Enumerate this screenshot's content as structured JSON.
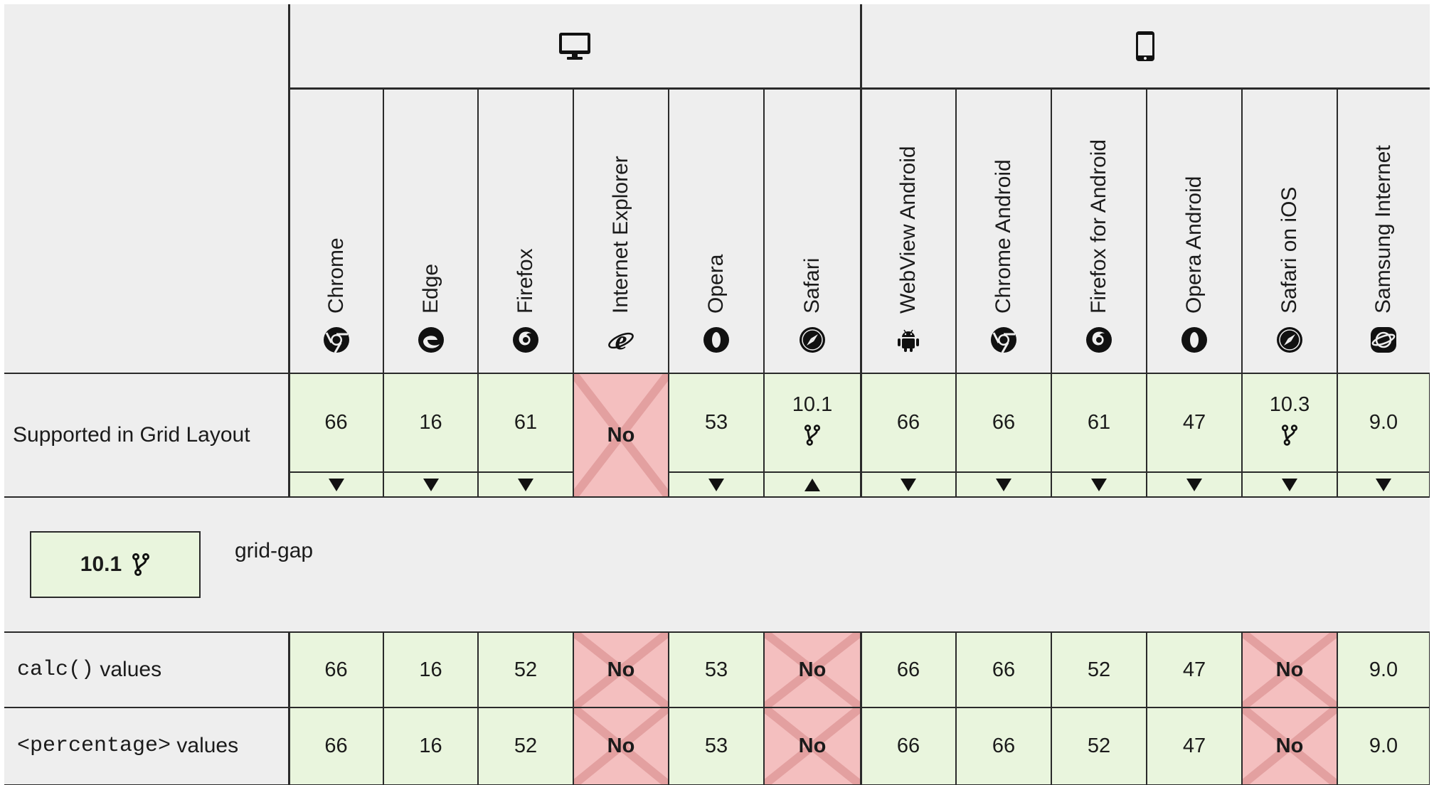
{
  "groups": {
    "desktop_icon": "desktop-icon",
    "mobile_icon": "mobile-icon"
  },
  "browsers": [
    {
      "name": "Chrome",
      "icon": "chrome-icon"
    },
    {
      "name": "Edge",
      "icon": "edge-icon"
    },
    {
      "name": "Firefox",
      "icon": "firefox-icon"
    },
    {
      "name": "Internet Explorer",
      "icon": "ie-icon"
    },
    {
      "name": "Opera",
      "icon": "opera-icon"
    },
    {
      "name": "Safari",
      "icon": "safari-icon"
    },
    {
      "name": "WebView Android",
      "icon": "android-icon"
    },
    {
      "name": "Chrome Android",
      "icon": "chrome-icon"
    },
    {
      "name": "Firefox for Android",
      "icon": "firefox-icon"
    },
    {
      "name": "Opera Android",
      "icon": "opera-icon"
    },
    {
      "name": "Safari on iOS",
      "icon": "safari-icon"
    },
    {
      "name": "Samsung Internet",
      "icon": "samsung-icon"
    }
  ],
  "rows": [
    {
      "label": "Supported in Grid Layout",
      "label_code": "",
      "label_suffix": "",
      "cells": [
        {
          "value": "66",
          "support": "yes",
          "note": false,
          "toggle": "down"
        },
        {
          "value": "16",
          "support": "yes",
          "note": false,
          "toggle": "down"
        },
        {
          "value": "61",
          "support": "yes",
          "note": false,
          "toggle": "down"
        },
        {
          "value": "No",
          "support": "no",
          "note": false,
          "toggle": "none"
        },
        {
          "value": "53",
          "support": "yes",
          "note": false,
          "toggle": "down"
        },
        {
          "value": "10.1",
          "support": "yes",
          "note": true,
          "toggle": "up"
        },
        {
          "value": "66",
          "support": "yes",
          "note": false,
          "toggle": "down"
        },
        {
          "value": "66",
          "support": "yes",
          "note": false,
          "toggle": "down"
        },
        {
          "value": "61",
          "support": "yes",
          "note": false,
          "toggle": "down"
        },
        {
          "value": "47",
          "support": "yes",
          "note": false,
          "toggle": "down"
        },
        {
          "value": "10.3",
          "support": "yes",
          "note": true,
          "toggle": "down"
        },
        {
          "value": "9.0",
          "support": "yes",
          "note": false,
          "toggle": "down"
        }
      ]
    },
    {
      "label": "",
      "label_code": "calc()",
      "label_suffix": " values",
      "cells": [
        {
          "value": "66",
          "support": "yes"
        },
        {
          "value": "16",
          "support": "yes"
        },
        {
          "value": "52",
          "support": "yes"
        },
        {
          "value": "No",
          "support": "no"
        },
        {
          "value": "53",
          "support": "yes"
        },
        {
          "value": "No",
          "support": "no"
        },
        {
          "value": "66",
          "support": "yes"
        },
        {
          "value": "66",
          "support": "yes"
        },
        {
          "value": "52",
          "support": "yes"
        },
        {
          "value": "47",
          "support": "yes"
        },
        {
          "value": "No",
          "support": "no"
        },
        {
          "value": "9.0",
          "support": "yes"
        }
      ]
    },
    {
      "label": "",
      "label_code": "<percentage>",
      "label_suffix": " values",
      "cells": [
        {
          "value": "66",
          "support": "yes"
        },
        {
          "value": "16",
          "support": "yes"
        },
        {
          "value": "52",
          "support": "yes"
        },
        {
          "value": "No",
          "support": "no"
        },
        {
          "value": "53",
          "support": "yes"
        },
        {
          "value": "No",
          "support": "no"
        },
        {
          "value": "66",
          "support": "yes"
        },
        {
          "value": "66",
          "support": "yes"
        },
        {
          "value": "52",
          "support": "yes"
        },
        {
          "value": "47",
          "support": "yes"
        },
        {
          "value": "No",
          "support": "no"
        },
        {
          "value": "9.0",
          "support": "yes"
        }
      ]
    }
  ],
  "expanded_note": {
    "version": "10.1",
    "icon": "alt-name-fork-icon",
    "text": "grid-gap"
  },
  "colors": {
    "supported": "#e9f5dd",
    "unsupported": "#f4bfbf",
    "background": "#eeeeee",
    "border": "#2a2a2a"
  }
}
